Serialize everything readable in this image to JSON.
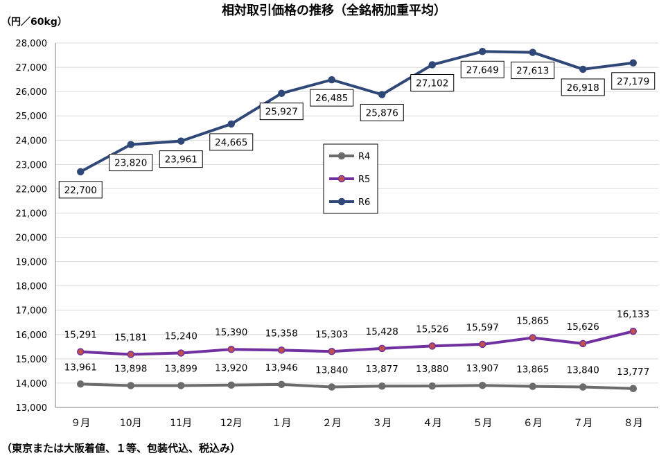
{
  "chart_data": {
    "type": "line",
    "title": "相対取引価格の推移（全銘柄加重平均）",
    "unit_label": "（円／60kg）",
    "footnote": "（東京または大阪着値、１等、包装代込、税込み）",
    "categories": [
      "９月",
      "10月",
      "11月",
      "12月",
      "１月",
      "２月",
      "３月",
      "４月",
      "５月",
      "６月",
      "７月",
      "８月"
    ],
    "ylim": [
      13000,
      28000
    ],
    "ytick_step": 1000,
    "yticks": [
      "13,000",
      "14,000",
      "15,000",
      "16,000",
      "17,000",
      "18,000",
      "19,000",
      "20,000",
      "21,000",
      "22,000",
      "23,000",
      "24,000",
      "25,000",
      "26,000",
      "27,000",
      "28,000"
    ],
    "grid": true,
    "legend_position": "center",
    "series": [
      {
        "name": "R4",
        "color": "#6b6b6b",
        "marker_color": "#6b6b6b",
        "values": [
          13961,
          13898,
          13899,
          13920,
          13946,
          13840,
          13877,
          13880,
          13907,
          13865,
          13840,
          13777
        ],
        "labels": [
          "13,961",
          "13,898",
          "13,899",
          "13,920",
          "13,946",
          "13,840",
          "13,877",
          "13,880",
          "13,907",
          "13,865",
          "13,840",
          "13,777"
        ]
      },
      {
        "name": "R5",
        "color": "#7030a0",
        "marker_color": "#c0504d",
        "values": [
          15291,
          15181,
          15240,
          15390,
          15358,
          15303,
          15428,
          15526,
          15597,
          15865,
          15626,
          16133
        ],
        "labels": [
          "15,291",
          "15,181",
          "15,240",
          "15,390",
          "15,358",
          "15,303",
          "15,428",
          "15,526",
          "15,597",
          "15,865",
          "15,626",
          "16,133"
        ]
      },
      {
        "name": "R6",
        "color": "#2f4878",
        "marker_color": "#2f4878",
        "values": [
          22700,
          23820,
          23961,
          24665,
          25927,
          26485,
          25876,
          27102,
          27649,
          27613,
          26918,
          27179
        ],
        "labels": [
          "22,700",
          "23,820",
          "23,961",
          "24,665",
          "25,927",
          "26,485",
          "25,876",
          "27,102",
          "27,649",
          "27,613",
          "26,918",
          "27,179"
        ]
      }
    ]
  }
}
